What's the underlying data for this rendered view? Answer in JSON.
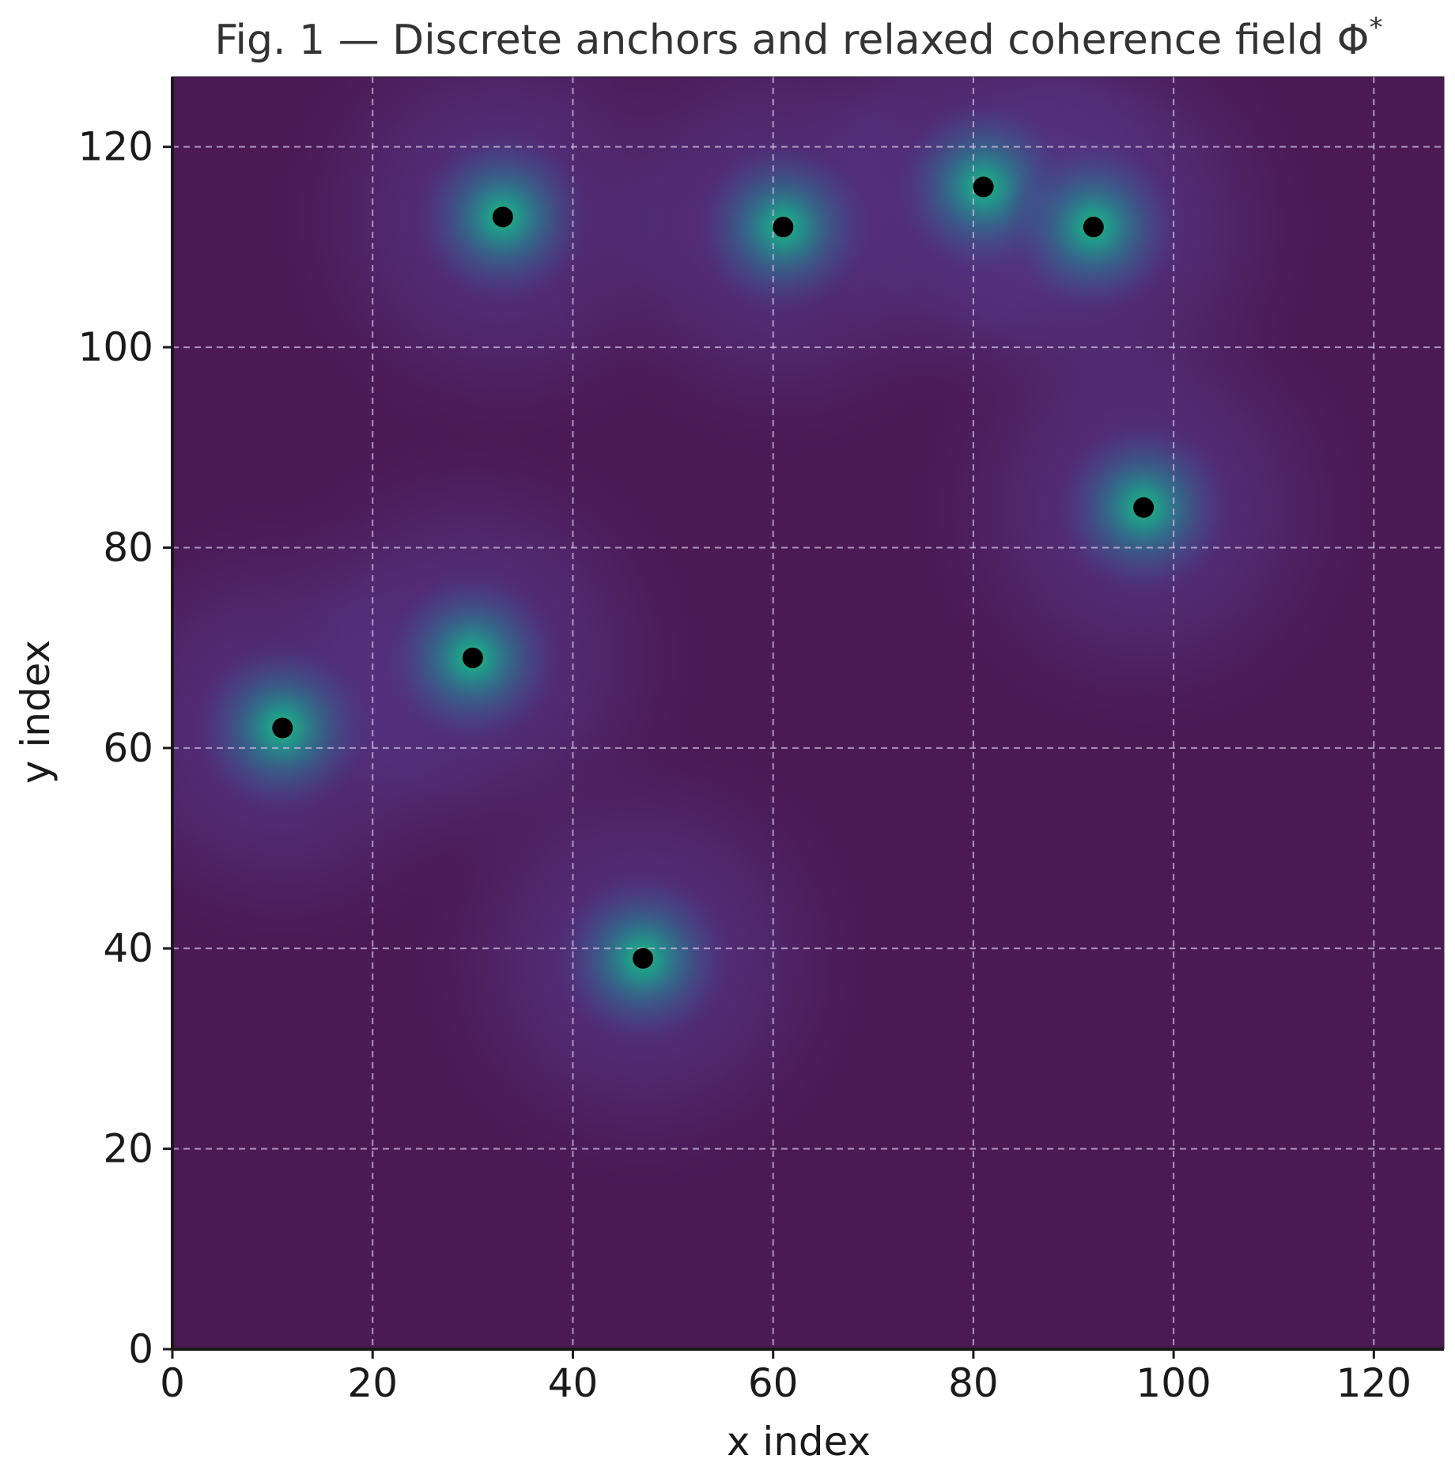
{
  "chart_data": {
    "type": "heatmap",
    "title": "Fig. 1 — Discrete anchors and relaxed coherence field Φ",
    "title_superscript": "*",
    "xlabel": "x index",
    "ylabel": "y index",
    "xlim": [
      0,
      127
    ],
    "ylim": [
      0,
      127
    ],
    "x_ticks": [
      0,
      20,
      40,
      60,
      80,
      100,
      120
    ],
    "y_ticks": [
      0,
      20,
      40,
      60,
      80,
      100,
      120
    ],
    "x_tick_labels": [
      "0",
      "20",
      "40",
      "60",
      "80",
      "100",
      "120"
    ],
    "y_tick_labels": [
      "0",
      "20",
      "40",
      "60",
      "80",
      "100",
      "120"
    ],
    "grid": true,
    "legend": "none",
    "colormap": "viridis",
    "colors": {
      "background_field": "#4b1a55",
      "anchor": "#000000",
      "grid": "#cdbbe0"
    },
    "anchors": [
      {
        "x": 11,
        "y": 62
      },
      {
        "x": 30,
        "y": 69
      },
      {
        "x": 33,
        "y": 113
      },
      {
        "x": 47,
        "y": 39
      },
      {
        "x": 61,
        "y": 112
      },
      {
        "x": 81,
        "y": 116
      },
      {
        "x": 92,
        "y": 112
      },
      {
        "x": 97,
        "y": 84
      }
    ]
  }
}
